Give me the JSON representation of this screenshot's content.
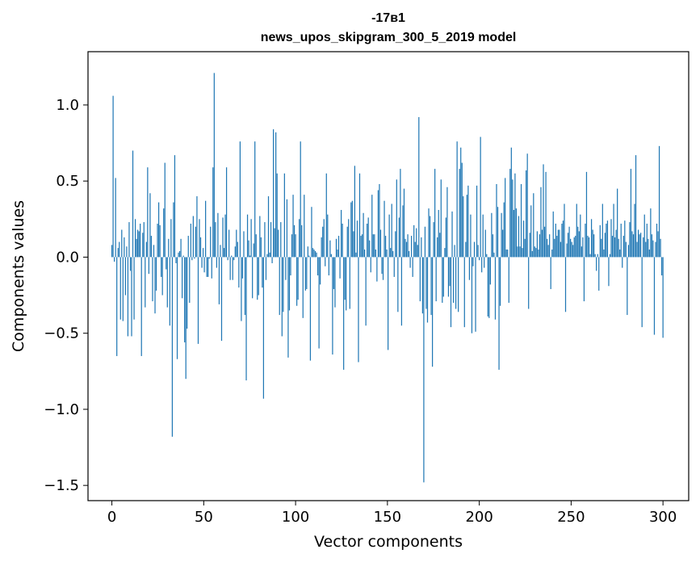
{
  "chart_data": {
    "type": "bar",
    "title": "-17в1",
    "subtitle": "news_upos_skipgram_300_5_2019 model",
    "xlabel": "Vector components",
    "ylabel": "Components values",
    "xlim": [
      -13,
      314
    ],
    "ylim": [
      -1.6,
      1.35
    ],
    "xticks": [
      0,
      50,
      100,
      150,
      200,
      250,
      300
    ],
    "yticks": [
      1.0,
      0.5,
      0.0,
      -0.5,
      -1.0,
      -1.5
    ],
    "xtick_labels": [
      "0",
      "50",
      "100",
      "150",
      "200",
      "250",
      "300"
    ],
    "ytick_labels": [
      "1.0",
      "0.5",
      "0.0",
      "−0.5",
      "−1.0",
      "−1.5"
    ],
    "grid": false,
    "bar_color": "#1f77b4",
    "values": [
      0.08,
      1.06,
      -0.03,
      0.52,
      -0.65,
      0.06,
      0.1,
      -0.41,
      0.18,
      -0.42,
      0.13,
      -0.25,
      0.07,
      -0.52,
      0.23,
      -0.09,
      -0.52,
      0.7,
      -0.41,
      0.25,
      0.12,
      0.18,
      0.17,
      0.22,
      -0.65,
      0.16,
      0.23,
      -0.33,
      0.1,
      0.59,
      -0.11,
      0.42,
      0.14,
      -0.29,
      0.08,
      -0.37,
      -0.22,
      0.22,
      0.36,
      0.21,
      -0.13,
      -0.25,
      0.32,
      0.62,
      -0.08,
      -0.33,
      0.12,
      -0.45,
      0.25,
      -1.18,
      0.36,
      0.67,
      -0.04,
      -0.67,
      0.03,
      0.04,
      0.12,
      -0.27,
      0.01,
      -0.56,
      -0.8,
      -0.47,
      0.14,
      -0.3,
      0.22,
      -0.02,
      0.27,
      -0.01,
      0.2,
      0.4,
      -0.57,
      0.25,
      0.13,
      -0.07,
      0.06,
      -0.1,
      0.37,
      -0.13,
      -0.13,
      -0.01,
      0.2,
      -0.14,
      0.59,
      1.21,
      0.23,
      -0.07,
      0.29,
      -0.31,
      0.08,
      -0.55,
      0.26,
      0.06,
      0.28,
      0.59,
      -0.02,
      0.18,
      -0.15,
      0.01,
      -0.15,
      -0.02,
      0.07,
      0.18,
      0.1,
      -0.2,
      0.76,
      -0.42,
      -0.14,
      0.17,
      -0.38,
      -0.81,
      0.28,
      0.11,
      0.01,
      0.25,
      -0.27,
      0.09,
      0.76,
      0.15,
      -0.28,
      -0.25,
      0.27,
      0.13,
      -0.2,
      -0.93,
      0.23,
      -0.15,
      0.02,
      0.4,
      0.03,
      0.23,
      -0.04,
      0.84,
      0.19,
      0.82,
      0.55,
      0.18,
      -0.38,
      0.23,
      -0.52,
      -0.36,
      0.55,
      -0.15,
      0.38,
      -0.66,
      -0.35,
      -0.12,
      0.15,
      0.41,
      0.21,
      0.15,
      -0.32,
      -0.28,
      0.25,
      0.76,
      0.21,
      -0.4,
      0.41,
      -0.22,
      -0.21,
      0.07,
      0.01,
      -0.68,
      0.33,
      0.06,
      0.05,
      0.04,
      0.03,
      -0.12,
      -0.6,
      -0.18,
      0.13,
      0.2,
      0.25,
      -0.06,
      0.55,
      0.28,
      -0.12,
      0.11,
      0.02,
      -0.64,
      -0.21,
      -0.33,
      0.12,
      0.05,
      0.14,
      -0.14,
      0.31,
      0.22,
      -0.74,
      -0.28,
      -0.35,
      0.2,
      0.25,
      -0.34,
      0.36,
      0.37,
      0.17,
      0.6,
      0.03,
      0.24,
      -0.69,
      0.55,
      0.14,
      0.15,
      0.29,
      0.05,
      -0.45,
      0.22,
      0.26,
      0.11,
      -0.1,
      0.41,
      0.15,
      0.15,
      0.05,
      -0.16,
      0.44,
      0.48,
      0.18,
      -0.11,
      -0.15,
      0.37,
      0.14,
      0.05,
      -0.61,
      0.28,
      0.06,
      0.35,
      0.04,
      -0.13,
      0.17,
      0.51,
      -0.36,
      0.26,
      0.58,
      -0.45,
      0.34,
      0.45,
      0.12,
      0.1,
      0.15,
      0.04,
      -0.07,
      0.14,
      -0.13,
      0.21,
      0.1,
      0.19,
      0.08,
      0.92,
      -0.29,
      0.13,
      -0.37,
      -1.48,
      0.2,
      -0.34,
      -0.43,
      0.32,
      0.27,
      -0.38,
      -0.72,
      0.23,
      0.58,
      -0.29,
      0.13,
      0.31,
      0.16,
      0.51,
      -0.3,
      -0.26,
      0.06,
      0.26,
      0.46,
      -0.26,
      -0.19,
      -0.46,
      0.3,
      -0.3,
      0.08,
      -0.34,
      0.76,
      -0.36,
      0.58,
      0.72,
      0.62,
      0.4,
      -0.46,
      0.1,
      0.41,
      0.47,
      -0.15,
      0.28,
      -0.5,
      -0.06,
      0.1,
      -0.49,
      0.47,
      0.08,
      -0.02,
      0.79,
      -0.1,
      0.28,
      -0.07,
      0.18,
      0.02,
      -0.39,
      -0.4,
      -0.18,
      0.29,
      0.15,
      0.03,
      -0.41,
      0.48,
      0.33,
      -0.74,
      -0.32,
      0.29,
      0.18,
      0.36,
      0.52,
      0.05,
      0.05,
      -0.3,
      0.58,
      0.72,
      0.51,
      0.31,
      0.55,
      0.32,
      0.07,
      0.27,
      0.07,
      0.48,
      0.06,
      0.24,
      0.12,
      0.57,
      0.68,
      -0.34,
      0.16,
      0.34,
      0.04,
      0.42,
      0.07,
      0.06,
      0.17,
      0.05,
      0.15,
      0.46,
      0.18,
      0.61,
      0.2,
      0.56,
      0.12,
      0.08,
      0.15,
      -0.21,
      0.05,
      0.3,
      0.12,
      0.22,
      0.14,
      0.18,
      0.18,
      0.1,
      0.22,
      0.24,
      0.35,
      -0.36,
      0.09,
      0.16,
      0.2,
      0.12,
      0.1,
      0.08,
      0.13,
      0.14,
      0.35,
      0.2,
      0.17,
      0.28,
      0.07,
      0.13,
      -0.29,
      0.22,
      0.56,
      0.14,
      0.13,
      0.02,
      0.25,
      0.18,
      0.15,
      0.02,
      -0.09,
      0.02,
      -0.22,
      0.21,
      0.12,
      0.35,
      0.05,
      0.16,
      0.22,
      0.24,
      -0.19,
      0.02,
      0.25,
      0.14,
      0.35,
      0.13,
      0.18,
      0.45,
      0.12,
      0.05,
      0.22,
      -0.07,
      0.14,
      0.24,
      0.1,
      -0.38,
      0.08,
      0.23,
      0.58,
      0.17,
      0.15,
      0.35,
      0.67,
      0.1,
      0.18,
      0.15,
      0.16,
      -0.46,
      0.13,
      0.28,
      0.1,
      0.22,
      0.12,
      0.05,
      0.32,
      0.15,
      0.11,
      -0.51,
      0.1,
      0.22,
      0.17,
      0.73,
      0.12,
      -0.12,
      -0.53
    ]
  }
}
